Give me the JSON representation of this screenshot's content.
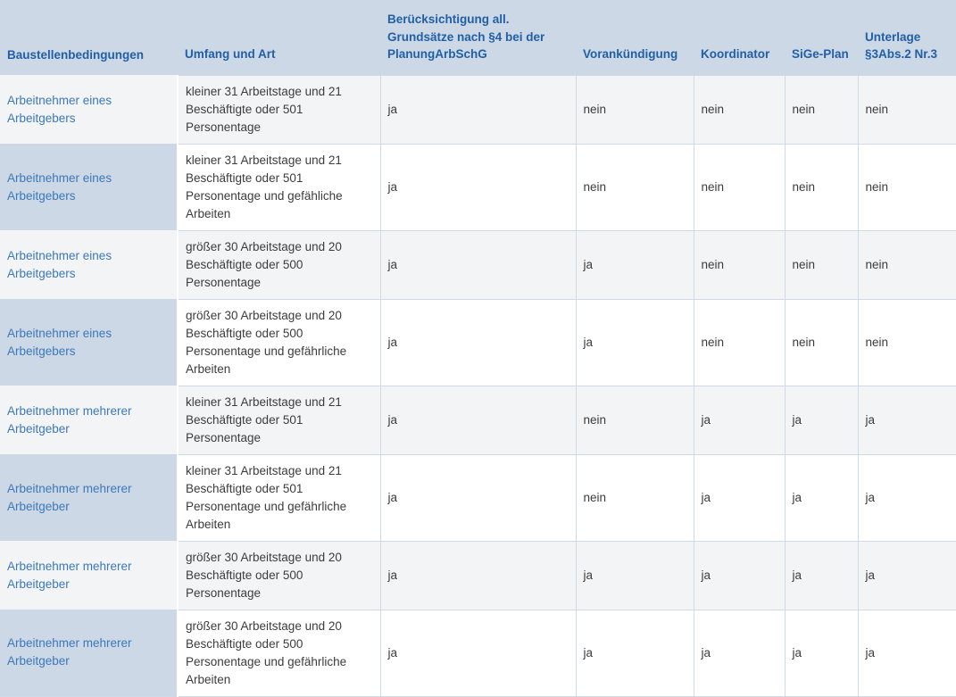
{
  "colors": {
    "header_bg": "#ccd8e5",
    "first_column_bg": "#ccd8e5",
    "row_odd_bg": "#f3f4f5",
    "row_even_bg": "#ffffff",
    "grid_border": "#d0dae4",
    "header_text": "#215fa6",
    "first_column_text": "#3c78ba",
    "body_text": "#3c3c3c"
  },
  "table": {
    "columns": [
      "Baustellenbedingungen",
      "Umfang und Art",
      "Berücksichtigung all. Grundsätze nach §4 bei der PlanungArbSchG",
      "Vorankündigung",
      "Koordinator",
      "SiGe-Plan",
      "Unterlage §3Abs.2 Nr.3"
    ],
    "rows": [
      [
        "Arbeitnehmer eines Arbeitgebers",
        "kleiner 31 Arbeitstage und 21 Beschäftigte oder 501 Personentage",
        "ja",
        "nein",
        "nein",
        "nein",
        "nein"
      ],
      [
        "Arbeitnehmer eines Arbeitgebers",
        "kleiner 31 Arbeitstage und 21 Beschäftigte oder 501 Personentage und gefähliche Arbeiten",
        "ja",
        "nein",
        "nein",
        "nein",
        "nein"
      ],
      [
        "Arbeitnehmer eines Arbeitgebers",
        "größer 30 Arbeitstage und 20 Beschäftigte oder 500 Personentage",
        "ja",
        "ja",
        "nein",
        "nein",
        "nein"
      ],
      [
        "Arbeitnehmer eines Arbeitgebers",
        "größer 30 Arbeitstage und 20 Beschäftigte oder 500 Personentage und gefährliche Arbeiten",
        "ja",
        "ja",
        "nein",
        "nein",
        "nein"
      ],
      [
        "Arbeitnehmer mehrerer Arbeitgeber",
        "kleiner 31 Arbeitstage und 21 Beschäftigte oder 501 Personentage",
        "ja",
        "nein",
        "ja",
        "ja",
        "ja"
      ],
      [
        "Arbeitnehmer mehrerer Arbeitgeber",
        "kleiner 31 Arbeitstage und 21 Beschäftigte oder 501 Personentage und gefährliche Arbeiten",
        "ja",
        "nein",
        "ja",
        "ja",
        "ja"
      ],
      [
        "Arbeitnehmer mehrerer Arbeitgeber",
        "größer 30 Arbeitstage und 20 Beschäftigte oder 500 Personentage",
        "ja",
        "ja",
        "ja",
        "ja",
        "ja"
      ],
      [
        "Arbeitnehmer mehrerer Arbeitgeber",
        "größer 30 Arbeitstage und 20 Beschäftigte oder 500 Personentage und gefährliche Arbeiten",
        "ja",
        "ja",
        "ja",
        "ja",
        "ja"
      ]
    ]
  }
}
